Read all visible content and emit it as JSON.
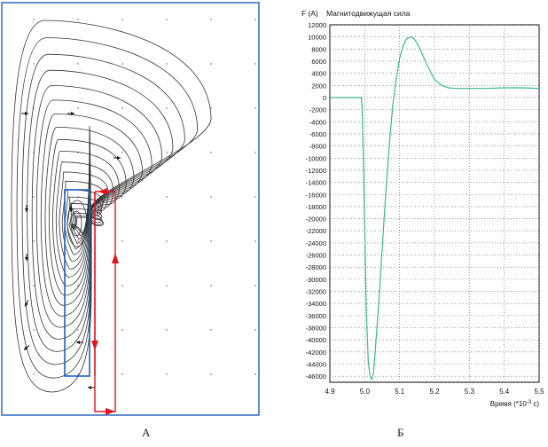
{
  "figure": {
    "captions": {
      "left": "А",
      "right": "Б"
    }
  },
  "field_panel": {
    "frame_color": "#1f5fbf",
    "line_color": "#333333",
    "coil_color": "#1f5fbf",
    "circuit_color": "#e0141e"
  },
  "chart_data": {
    "type": "line",
    "title": "Магнитодвижущая сила",
    "ylabel": "F (A)",
    "xlabel": "Время (*10",
    "xlabel_sup": "-3",
    "xlabel_tail": " с)",
    "xlim": [
      4.9,
      5.5
    ],
    "ylim": [
      -47000,
      12000
    ],
    "xticks": [
      "4.9",
      "5.0",
      "5.1",
      "5.2",
      "5.3",
      "5.4",
      "5.5"
    ],
    "yticks": [
      "12000",
      "10000",
      "8000",
      "6000",
      "4000",
      "2000",
      "0",
      "-2000",
      "-4000",
      "-6000",
      "-8000",
      "-10000",
      "-12000",
      "-14000",
      "-16000",
      "-18000",
      "-20000",
      "-22000",
      "-24000",
      "-26000",
      "-28000",
      "-30000",
      "-32000",
      "-34000",
      "-36000",
      "-38000",
      "-40000",
      "-42000",
      "-44000",
      "-46000"
    ],
    "grid": true,
    "line_color": "#3cb88a",
    "series": [
      {
        "x": [
          4.9,
          4.99,
          4.992,
          4.996,
          5.0,
          5.005,
          5.01,
          5.015,
          5.02,
          5.025,
          5.03,
          5.04,
          5.05,
          5.06,
          5.07,
          5.08,
          5.09,
          5.1,
          5.11,
          5.12,
          5.13,
          5.14,
          5.15,
          5.16,
          5.18,
          5.2,
          5.22,
          5.24,
          5.26,
          5.3,
          5.35,
          5.4,
          5.45,
          5.5
        ],
        "y": [
          0,
          0,
          -1000,
          -10000,
          -22000,
          -36000,
          -43500,
          -46000,
          -46500,
          -45500,
          -42000,
          -34000,
          -25000,
          -16000,
          -8000,
          -1500,
          3000,
          6500,
          8600,
          9700,
          10000,
          9800,
          9000,
          7800,
          5200,
          3000,
          2000,
          1600,
          1500,
          1500,
          1500,
          1600,
          1600,
          1500
        ]
      }
    ]
  }
}
